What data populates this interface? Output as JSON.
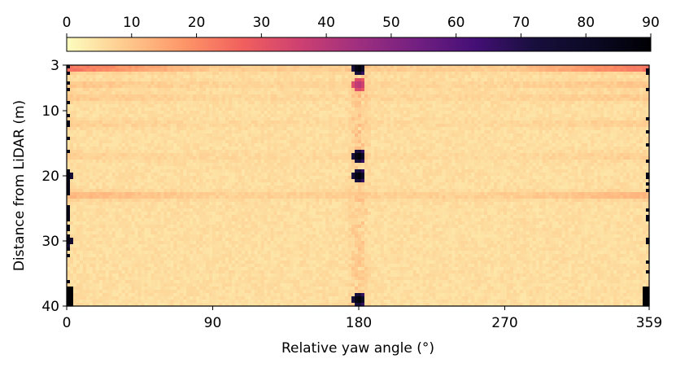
{
  "chart_data": {
    "type": "heatmap",
    "title": "",
    "xlabel": "Relative yaw angle (°)",
    "ylabel": "Distance from LiDAR (m)",
    "xlim": [
      0,
      359
    ],
    "ylim": [
      3,
      40
    ],
    "y_inverted": true,
    "x_ticks": [
      0,
      90,
      180,
      270,
      359
    ],
    "x_tick_labels": [
      "0",
      "90",
      "180",
      "270",
      "359"
    ],
    "y_ticks": [
      3,
      10,
      20,
      30,
      40
    ],
    "y_tick_labels": [
      "3",
      "10",
      "20",
      "30",
      "40"
    ],
    "colorbar": {
      "orientation": "horizontal",
      "position": "top",
      "colormap": "magma_r",
      "range": [
        0,
        90
      ],
      "ticks": [
        0,
        10,
        20,
        30,
        40,
        50,
        60,
        70,
        80,
        90
      ],
      "tick_labels": [
        "0",
        "10",
        "20",
        "30",
        "40",
        "50",
        "60",
        "70",
        "80",
        "90"
      ]
    },
    "grid": false,
    "description_of_values": {
      "background_level": 4,
      "bands": [
        {
          "distance": 3.5,
          "value": 14
        },
        {
          "distance": 6,
          "value": 9
        },
        {
          "distance": 8,
          "value": 8
        },
        {
          "distance": 12,
          "value": 7
        },
        {
          "distance": 17,
          "value": 7
        },
        {
          "distance": 23,
          "value": 12
        }
      ],
      "hotspots": [
        {
          "yaw": 180,
          "distance": 3.5,
          "value": 90
        },
        {
          "yaw": 180,
          "distance": 39,
          "value": 90
        },
        {
          "yaw": 0,
          "distance": 39,
          "value": 90
        },
        {
          "yaw": 359,
          "distance": 39,
          "value": 90
        },
        {
          "yaw": 180,
          "distance": 6,
          "value": 40
        },
        {
          "yaw": 180,
          "distance": 17,
          "value": 90
        },
        {
          "yaw": 180,
          "distance": 20,
          "value": 90
        },
        {
          "yaw": 0,
          "distance": 20,
          "value": 90
        },
        {
          "yaw": 0,
          "distance": 30,
          "value": 90
        }
      ]
    }
  }
}
